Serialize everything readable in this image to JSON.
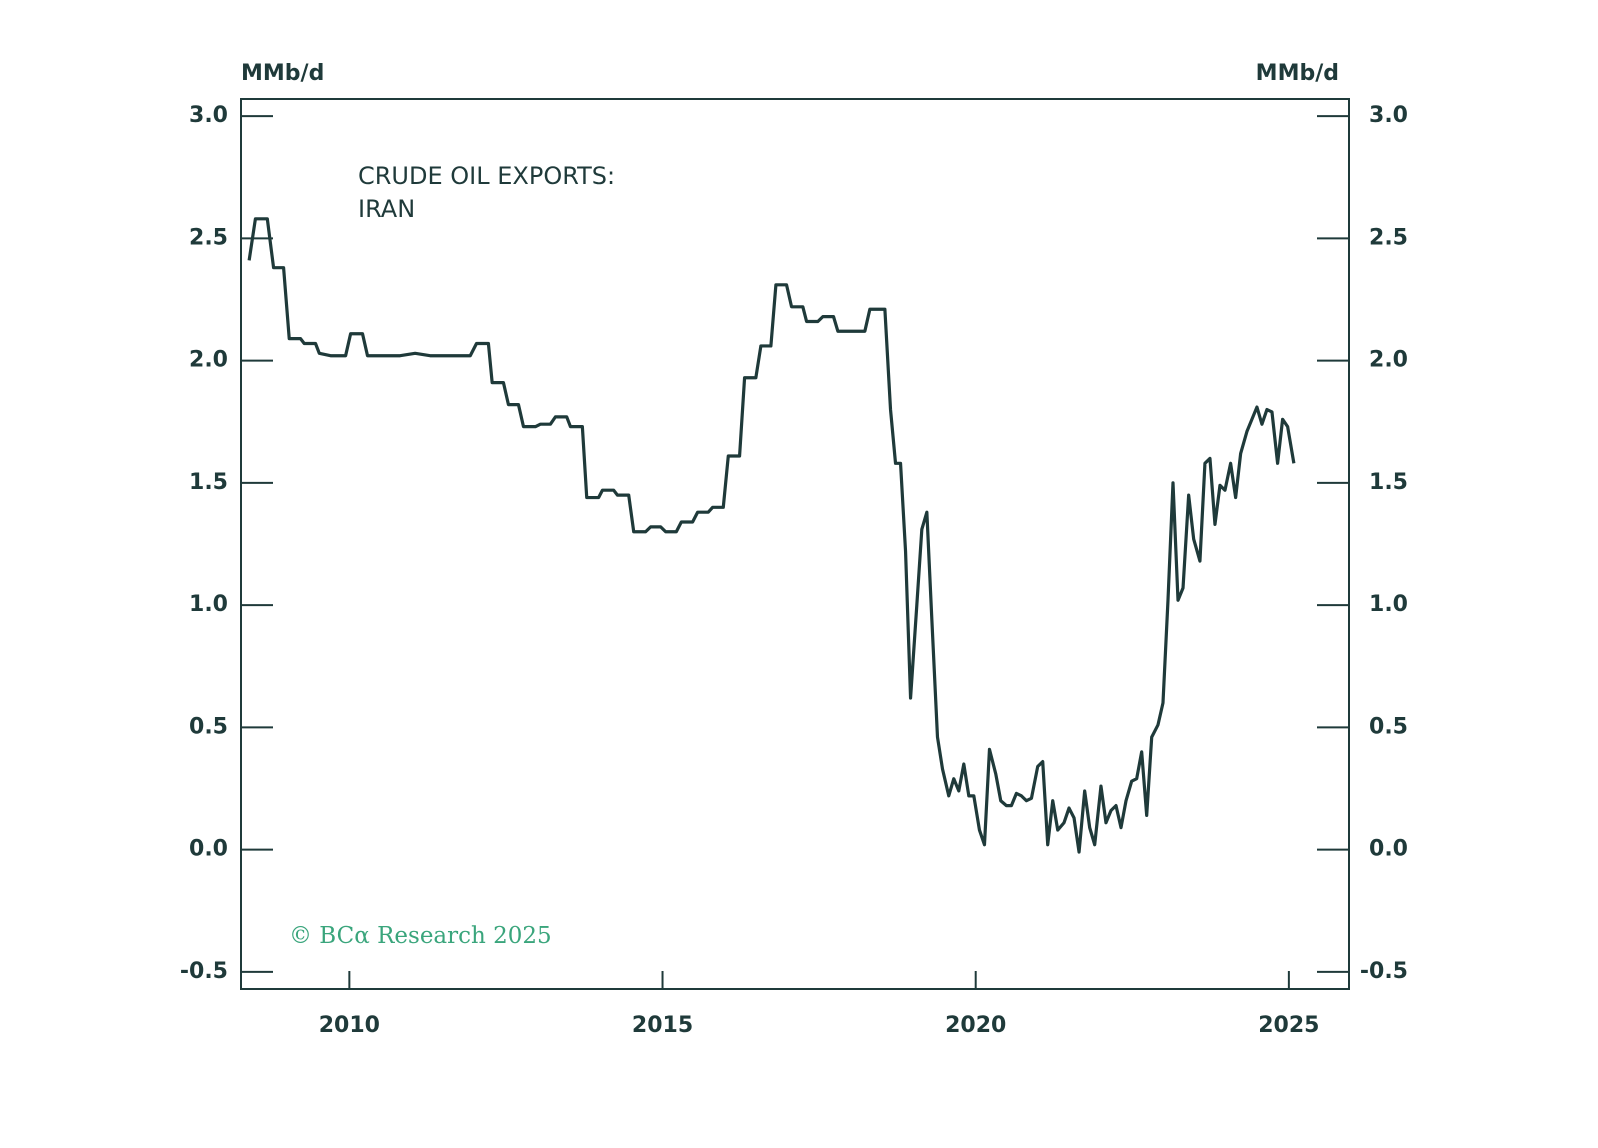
{
  "chart_data": {
    "type": "line",
    "y_label": "MMb/d",
    "y2_label": "MMb/d",
    "title": [
      "CRUDE OIL EXPORTS:",
      "IRAN"
    ],
    "credit": "© BCα Research 2025",
    "color": "#1f3a3a",
    "xlim": [
      2008.27,
      2025.96
    ],
    "xticks": [
      2010,
      2015,
      2020,
      2025
    ],
    "ylim": [
      -0.57,
      3.07
    ],
    "yticks": [
      {
        "value": -0.5,
        "label": "-0.5"
      },
      {
        "value": 0,
        "label": "0.0"
      },
      {
        "value": 0.5,
        "label": "0.5"
      },
      {
        "value": 1,
        "label": "1.0"
      },
      {
        "value": 1.5,
        "label": "1.5"
      },
      {
        "value": 2,
        "label": "2.0"
      },
      {
        "value": 2.5,
        "label": "2.5"
      },
      {
        "value": 3,
        "label": "3.0"
      }
    ],
    "y2lim": [
      -0.57,
      3.07
    ],
    "y2ticks": [
      {
        "value": -0.5,
        "label": "-0.5"
      },
      {
        "value": 0,
        "label": "0.0"
      },
      {
        "value": 0.5,
        "label": "0.5"
      },
      {
        "value": 1,
        "label": "1.0"
      },
      {
        "value": 1.5,
        "label": "1.5"
      },
      {
        "value": 2,
        "label": "2.0"
      },
      {
        "value": 2.5,
        "label": "2.5"
      },
      {
        "value": 3,
        "label": "3.0"
      }
    ],
    "x": [
      2008.4,
      2008.5,
      2008.69,
      2008.79,
      2008.95,
      2009.04,
      2009.22,
      2009.28,
      2009.46,
      2009.52,
      2009.7,
      2009.94,
      2010.02,
      2010.21,
      2010.29,
      2010.5,
      2010.81,
      2011.05,
      2011.29,
      2011.93,
      2012.03,
      2012.22,
      2012.28,
      2012.46,
      2012.54,
      2012.7,
      2012.78,
      2012.97,
      2013.05,
      2013.21,
      2013.29,
      2013.47,
      2013.53,
      2013.72,
      2013.79,
      2013.98,
      2014.04,
      2014.22,
      2014.28,
      2014.46,
      2014.54,
      2014.73,
      2014.81,
      2014.97,
      2015.05,
      2015.22,
      2015.3,
      2015.48,
      2015.56,
      2015.73,
      2015.8,
      2015.97,
      2016.05,
      2016.23,
      2016.31,
      2016.49,
      2016.57,
      2016.73,
      2016.81,
      2016.98,
      2017.06,
      2017.24,
      2017.3,
      2017.48,
      2017.56,
      2017.73,
      2017.8,
      2018.23,
      2018.31,
      2018.55,
      2018.64,
      2018.72,
      2018.8,
      2018.88,
      2018.96,
      2019.06,
      2019.14,
      2019.22,
      2019.3,
      2019.39,
      2019.47,
      2019.57,
      2019.65,
      2019.73,
      2019.81,
      2019.89,
      2019.97,
      2020.06,
      2020.14,
      2020.22,
      2020.32,
      2020.4,
      2020.49,
      2020.57,
      2020.65,
      2020.73,
      2020.81,
      2020.89,
      2020.99,
      2021.07,
      2021.15,
      2021.23,
      2021.31,
      2021.41,
      2021.49,
      2021.57,
      2021.65,
      2021.74,
      2021.82,
      2021.9,
      2022.0,
      2022.08,
      2022.16,
      2022.24,
      2022.32,
      2022.4,
      2022.49,
      2022.57,
      2022.65,
      2022.73,
      2022.81,
      2022.91,
      2022.99,
      2023.07,
      2023.15,
      2023.23,
      2023.31,
      2023.4,
      2023.48,
      2023.58,
      2023.66,
      2023.74,
      2023.82,
      2023.9,
      2023.98,
      2024.07,
      2024.15,
      2024.23,
      2024.33,
      2024.41,
      2024.49,
      2024.57,
      2024.65,
      2024.73,
      2024.82,
      2024.9,
      2024.98,
      2025.08
    ],
    "values": [
      2.41,
      2.58,
      2.58,
      2.38,
      2.38,
      2.09,
      2.09,
      2.07,
      2.07,
      2.03,
      2.02,
      2.02,
      2.11,
      2.11,
      2.02,
      2.02,
      2.02,
      2.03,
      2.02,
      2.02,
      2.07,
      2.07,
      1.91,
      1.91,
      1.82,
      1.82,
      1.73,
      1.73,
      1.74,
      1.74,
      1.77,
      1.77,
      1.73,
      1.73,
      1.44,
      1.44,
      1.47,
      1.47,
      1.45,
      1.45,
      1.3,
      1.3,
      1.32,
      1.32,
      1.3,
      1.3,
      1.34,
      1.34,
      1.38,
      1.38,
      1.4,
      1.4,
      1.61,
      1.61,
      1.93,
      1.93,
      2.06,
      2.06,
      2.31,
      2.31,
      2.22,
      2.22,
      2.16,
      2.16,
      2.18,
      2.18,
      2.12,
      2.12,
      2.21,
      2.21,
      1.8,
      1.58,
      1.58,
      1.22,
      0.62,
      1.0,
      1.31,
      1.38,
      0.94,
      0.46,
      0.33,
      0.22,
      0.29,
      0.24,
      0.35,
      0.22,
      0.22,
      0.08,
      0.02,
      0.41,
      0.31,
      0.2,
      0.18,
      0.18,
      0.23,
      0.22,
      0.2,
      0.21,
      0.34,
      0.36,
      0.02,
      0.2,
      0.08,
      0.11,
      0.17,
      0.13,
      -0.01,
      0.24,
      0.09,
      0.02,
      0.26,
      0.11,
      0.16,
      0.18,
      0.09,
      0.2,
      0.28,
      0.29,
      0.4,
      0.14,
      0.46,
      0.51,
      0.6,
      1.02,
      1.5,
      1.02,
      1.07,
      1.45,
      1.27,
      1.18,
      1.58,
      1.6,
      1.33,
      1.49,
      1.47,
      1.58,
      1.44,
      1.62,
      1.71,
      1.76,
      1.81,
      1.74,
      1.8,
      1.79,
      1.58,
      1.76,
      1.73,
      1.58
    ]
  }
}
